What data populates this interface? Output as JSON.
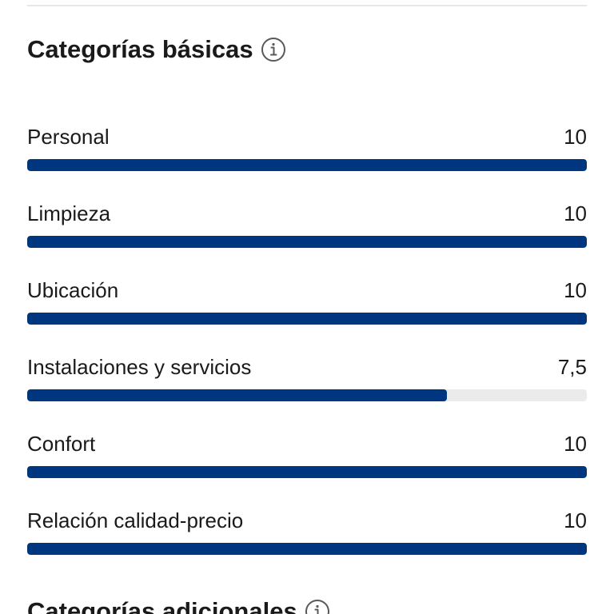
{
  "colors": {
    "bar_fill": "#003580",
    "bar_track": "#ebebeb",
    "text": "#1a1a1a",
    "divider": "#e7e7e7"
  },
  "basic_section": {
    "title": "Categorías básicas",
    "info_icon": "info-icon",
    "categories": [
      {
        "label": "Personal",
        "score": "10",
        "fraction": 1.0
      },
      {
        "label": "Limpieza",
        "score": "10",
        "fraction": 1.0
      },
      {
        "label": "Ubicación",
        "score": "10",
        "fraction": 1.0
      },
      {
        "label": "Instalaciones y servicios",
        "score": "7,5",
        "fraction": 0.75
      },
      {
        "label": "Confort",
        "score": "10",
        "fraction": 1.0
      },
      {
        "label": "Relación calidad-precio",
        "score": "10",
        "fraction": 1.0
      }
    ]
  },
  "additional_section": {
    "title": "Categorías adicionales",
    "info_icon": "info-icon"
  }
}
